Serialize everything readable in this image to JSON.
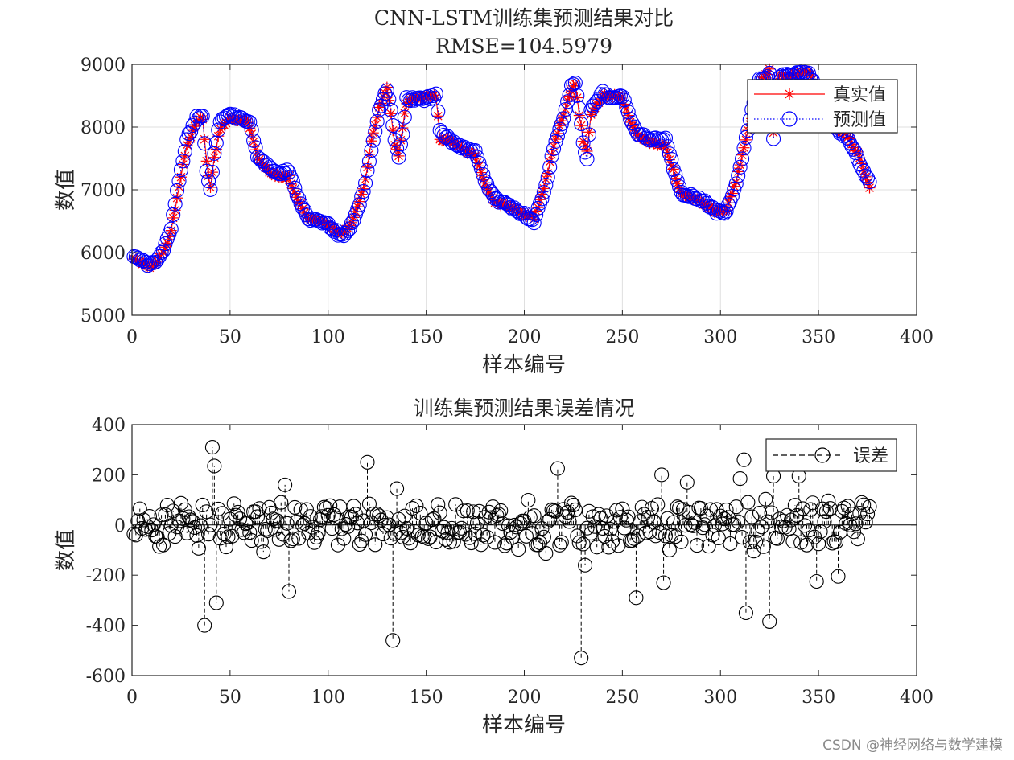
{
  "chart_data": [
    {
      "type": "line",
      "title": "CNN-LSTM训练集预测结果对比",
      "subtitle": "RMSE=104.5979",
      "xlabel": "样本编号",
      "ylabel": "数值",
      "xlim": [
        0,
        400
      ],
      "ylim": [
        5000,
        9000
      ],
      "xticks": [
        0,
        50,
        100,
        150,
        200,
        250,
        300,
        350,
        400
      ],
      "yticks": [
        5000,
        6000,
        7000,
        8000,
        9000
      ],
      "grid": true,
      "legend_position": "top-right",
      "x_range": [
        1,
        376
      ],
      "series": [
        {
          "name": "真实值",
          "color": "#ff0000",
          "marker": "asterisk",
          "line": "solid",
          "control_points": [
            [
              1,
              5900
            ],
            [
              8,
              5760
            ],
            [
              12,
              5830
            ],
            [
              16,
              6000
            ],
            [
              20,
              6350
            ],
            [
              24,
              7050
            ],
            [
              28,
              7700
            ],
            [
              33,
              8100
            ],
            [
              36,
              8150
            ],
            [
              38,
              7450
            ],
            [
              40,
              7050
            ],
            [
              42,
              7500
            ],
            [
              45,
              8000
            ],
            [
              50,
              8150
            ],
            [
              58,
              8100
            ],
            [
              60,
              8000
            ],
            [
              64,
              7500
            ],
            [
              70,
              7300
            ],
            [
              75,
              7200
            ],
            [
              80,
              7200
            ],
            [
              85,
              6800
            ],
            [
              90,
              6550
            ],
            [
              100,
              6450
            ],
            [
              105,
              6300
            ],
            [
              108,
              6300
            ],
            [
              112,
              6500
            ],
            [
              118,
              7000
            ],
            [
              122,
              7750
            ],
            [
              126,
              8300
            ],
            [
              130,
              8650
            ],
            [
              132,
              8200
            ],
            [
              134,
              7700
            ],
            [
              136,
              7550
            ],
            [
              138,
              8000
            ],
            [
              140,
              8400
            ],
            [
              150,
              8500
            ],
            [
              155,
              8500
            ],
            [
              157,
              7800
            ],
            [
              162,
              7800
            ],
            [
              170,
              7600
            ],
            [
              175,
              7550
            ],
            [
              180,
              7100
            ],
            [
              185,
              6800
            ],
            [
              195,
              6700
            ],
            [
              200,
              6600
            ],
            [
              205,
              6550
            ],
            [
              210,
              7000
            ],
            [
              215,
              7700
            ],
            [
              220,
              8200
            ],
            [
              224,
              8600
            ],
            [
              226,
              8700
            ],
            [
              228,
              8200
            ],
            [
              230,
              7800
            ],
            [
              232,
              7600
            ],
            [
              234,
              8200
            ],
            [
              240,
              8500
            ],
            [
              245,
              8500
            ],
            [
              250,
              8450
            ],
            [
              254,
              8100
            ],
            [
              258,
              7850
            ],
            [
              265,
              7750
            ],
            [
              272,
              7700
            ],
            [
              276,
              7300
            ],
            [
              280,
              6950
            ],
            [
              290,
              6800
            ],
            [
              298,
              6650
            ],
            [
              303,
              6700
            ],
            [
              308,
              7150
            ],
            [
              312,
              7700
            ],
            [
              316,
              8150
            ],
            [
              320,
              8700
            ],
            [
              325,
              8900
            ],
            [
              327,
              7900
            ],
            [
              330,
              8800
            ],
            [
              340,
              8850
            ],
            [
              345,
              8900
            ],
            [
              350,
              8500
            ],
            [
              356,
              8000
            ],
            [
              364,
              7900
            ],
            [
              370,
              7600
            ],
            [
              376,
              7050
            ]
          ]
        },
        {
          "name": "预测值",
          "color": "#0000ff",
          "marker": "circle",
          "line": "dotted",
          "control_points": [
            [
              1,
              5950
            ],
            [
              8,
              5800
            ],
            [
              12,
              5850
            ],
            [
              16,
              6050
            ],
            [
              20,
              6400
            ],
            [
              24,
              7150
            ],
            [
              28,
              7800
            ],
            [
              33,
              8150
            ],
            [
              36,
              8200
            ],
            [
              38,
              7300
            ],
            [
              40,
              7000
            ],
            [
              42,
              7600
            ],
            [
              45,
              8100
            ],
            [
              50,
              8200
            ],
            [
              58,
              8100
            ],
            [
              60,
              8050
            ],
            [
              64,
              7550
            ],
            [
              70,
              7350
            ],
            [
              75,
              7250
            ],
            [
              80,
              7300
            ],
            [
              85,
              6850
            ],
            [
              90,
              6550
            ],
            [
              100,
              6450
            ],
            [
              105,
              6300
            ],
            [
              108,
              6250
            ],
            [
              112,
              6450
            ],
            [
              118,
              6950
            ],
            [
              122,
              7650
            ],
            [
              126,
              8250
            ],
            [
              130,
              8600
            ],
            [
              132,
              8300
            ],
            [
              134,
              7800
            ],
            [
              136,
              7500
            ],
            [
              138,
              7900
            ],
            [
              140,
              8450
            ],
            [
              150,
              8450
            ],
            [
              155,
              8500
            ],
            [
              157,
              7950
            ],
            [
              162,
              7800
            ],
            [
              170,
              7650
            ],
            [
              175,
              7600
            ],
            [
              180,
              7150
            ],
            [
              185,
              6850
            ],
            [
              195,
              6700
            ],
            [
              200,
              6600
            ],
            [
              205,
              6500
            ],
            [
              210,
              6950
            ],
            [
              215,
              7650
            ],
            [
              220,
              8150
            ],
            [
              224,
              8650
            ],
            [
              226,
              8700
            ],
            [
              228,
              8300
            ],
            [
              230,
              7750
            ],
            [
              232,
              7500
            ],
            [
              234,
              8300
            ],
            [
              240,
              8550
            ],
            [
              245,
              8450
            ],
            [
              250,
              8500
            ],
            [
              254,
              8150
            ],
            [
              258,
              7900
            ],
            [
              265,
              7800
            ],
            [
              272,
              7800
            ],
            [
              276,
              7350
            ],
            [
              280,
              6950
            ],
            [
              290,
              6850
            ],
            [
              298,
              6650
            ],
            [
              303,
              6650
            ],
            [
              308,
              7100
            ],
            [
              312,
              7650
            ],
            [
              316,
              8300
            ],
            [
              320,
              8750
            ],
            [
              325,
              8850
            ],
            [
              327,
              7800
            ],
            [
              330,
              8800
            ],
            [
              340,
              8850
            ],
            [
              345,
              8850
            ],
            [
              350,
              8550
            ],
            [
              356,
              8050
            ],
            [
              364,
              7850
            ],
            [
              370,
              7500
            ],
            [
              376,
              7100
            ]
          ]
        }
      ]
    },
    {
      "type": "scatter",
      "title": "训练集预测结果误差情况",
      "xlabel": "样本编号",
      "ylabel": "数值",
      "xlim": [
        0,
        400
      ],
      "ylim": [
        -600,
        400
      ],
      "xticks": [
        0,
        50,
        100,
        150,
        200,
        250,
        300,
        350,
        400
      ],
      "yticks": [
        -600,
        -400,
        -200,
        0,
        200,
        400
      ],
      "grid": false,
      "legend_position": "top-right",
      "baseline": 0,
      "x_range": [
        1,
        376
      ],
      "series": [
        {
          "name": "误差",
          "color": "#000000",
          "marker": "circle",
          "stem": "dashed",
          "spread": 85,
          "notable_points": [
            [
              37,
              -400
            ],
            [
              41,
              310
            ],
            [
              42,
              235
            ],
            [
              43,
              -310
            ],
            [
              80,
              -265
            ],
            [
              78,
              160
            ],
            [
              120,
              250
            ],
            [
              133,
              -460
            ],
            [
              135,
              145
            ],
            [
              217,
              225
            ],
            [
              229,
              -530
            ],
            [
              231,
              -160
            ],
            [
              257,
              -290
            ],
            [
              270,
              200
            ],
            [
              271,
              -230
            ],
            [
              283,
              170
            ],
            [
              310,
              185
            ],
            [
              312,
              260
            ],
            [
              313,
              -350
            ],
            [
              325,
              -385
            ],
            [
              327,
              195
            ],
            [
              340,
              195
            ],
            [
              349,
              -225
            ],
            [
              360,
              -205
            ]
          ]
        }
      ]
    }
  ],
  "watermark": "CSDN @神经网络与数学建模"
}
